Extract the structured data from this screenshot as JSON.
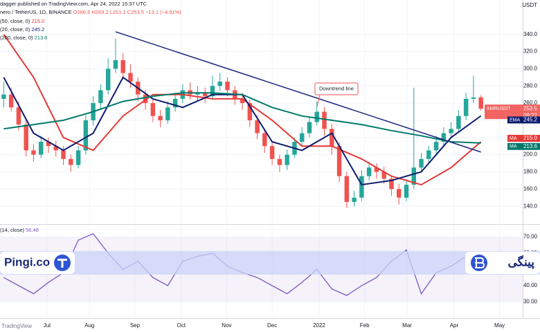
{
  "chart_data": [
    {
      "type": "candlestick",
      "published": "dagger published on TradingView.com, Apr 24, 2022 15:37 UTC",
      "symbol": "nero / TetherUS, 1D, BINANCE",
      "ohlc_header": [
        "O266.6",
        "H269.2",
        "L251.1",
        "C253.5",
        "−13.1 (−4.91%)"
      ],
      "axis_unit": "USDT",
      "up_color": "#26a69a",
      "down_color": "#ef5350",
      "open": [
        265,
        270,
        255,
        235,
        205,
        200,
        215,
        210,
        205,
        195,
        188,
        205,
        240,
        260,
        275,
        300,
        310,
        295,
        285,
        270,
        260,
        245,
        240,
        255,
        265,
        275,
        270,
        272,
        268,
        280,
        285,
        275,
        265,
        260,
        240,
        225,
        210,
        195,
        188,
        200,
        215,
        225,
        238,
        250,
        230,
        210,
        175,
        145,
        150,
        175,
        185,
        180,
        172,
        160,
        150,
        165,
        185,
        195,
        205,
        215,
        225,
        230,
        245,
        265,
        266.6
      ],
      "high": [
        285,
        278,
        262,
        240,
        212,
        222,
        220,
        216,
        210,
        200,
        210,
        246,
        268,
        282,
        312,
        335,
        318,
        305,
        290,
        276,
        266,
        252,
        262,
        272,
        282,
        284,
        280,
        278,
        292,
        295,
        290,
        280,
        272,
        264,
        246,
        230,
        214,
        200,
        206,
        220,
        232,
        244,
        262,
        255,
        236,
        214,
        180,
        158,
        182,
        192,
        190,
        186,
        176,
        166,
        172,
        278,
        202,
        210,
        222,
        232,
        238,
        252,
        272,
        292,
        269.2
      ],
      "low": [
        255,
        250,
        228,
        198,
        192,
        196,
        202,
        198,
        188,
        180,
        184,
        200,
        234,
        252,
        270,
        295,
        288,
        278,
        262,
        252,
        238,
        232,
        236,
        250,
        260,
        264,
        262,
        260,
        264,
        274,
        268,
        258,
        252,
        232,
        218,
        202,
        188,
        180,
        182,
        196,
        210,
        220,
        234,
        222,
        200,
        168,
        138,
        140,
        146,
        170,
        172,
        166,
        152,
        142,
        146,
        160,
        180,
        190,
        200,
        210,
        220,
        226,
        240,
        260,
        251.1
      ],
      "close": [
        270,
        255,
        235,
        205,
        200,
        215,
        210,
        205,
        195,
        188,
        205,
        240,
        260,
        275,
        300,
        310,
        295,
        285,
        270,
        260,
        245,
        240,
        255,
        265,
        275,
        270,
        272,
        268,
        280,
        285,
        275,
        265,
        260,
        240,
        225,
        210,
        195,
        188,
        200,
        215,
        225,
        238,
        250,
        230,
        210,
        175,
        145,
        150,
        175,
        185,
        180,
        172,
        160,
        150,
        165,
        185,
        195,
        205,
        215,
        225,
        230,
        245,
        265,
        266.6,
        253.5
      ],
      "series": [
        {
          "name": "(50, close, 0)",
          "tag": "MA",
          "color": "#e53935",
          "x": [
            0,
            4,
            8,
            12,
            16,
            20,
            24,
            28,
            32,
            36,
            40,
            44,
            48,
            52,
            56,
            60,
            64
          ],
          "values": [
            340,
            290,
            220,
            205,
            245,
            270,
            270,
            265,
            265,
            240,
            210,
            210,
            195,
            175,
            165,
            185,
            215.0
          ],
          "value_label": "215.0"
        },
        {
          "name": "(20, close, 0)",
          "tag": "EMA",
          "color": "#0d1b6e",
          "x": [
            0,
            4,
            8,
            12,
            16,
            20,
            24,
            28,
            32,
            36,
            40,
            44,
            48,
            52,
            56,
            60,
            64
          ],
          "values": [
            290,
            225,
            205,
            225,
            290,
            265,
            255,
            270,
            270,
            215,
            205,
            225,
            165,
            170,
            180,
            220,
            245.2
          ],
          "value_label": "245.2"
        },
        {
          "name": "(200, close, 0)",
          "tag": "MA",
          "color": "#00796b",
          "x": [
            0,
            4,
            8,
            12,
            16,
            20,
            24,
            28,
            32,
            36,
            40,
            44,
            48,
            52,
            56,
            60,
            64
          ],
          "values": [
            230,
            235,
            240,
            250,
            262,
            268,
            272,
            272,
            270,
            255,
            245,
            240,
            235,
            228,
            222,
            215,
            213.6
          ],
          "value_label": "213.6"
        }
      ],
      "close_tag": {
        "name": "XMRUSDT",
        "time": "08:22"
      },
      "trendline": {
        "color": "#1a237e",
        "x": [
          15,
          64
        ],
        "values": [
          343,
          203
        ]
      },
      "annotation": "Downtrend line",
      "ylim": [
        120,
        380
      ],
      "yticks": [
        {
          "value": 140,
          "label": "140.0"
        },
        {
          "value": 160,
          "label": "160.0"
        },
        {
          "value": 180,
          "label": "180.0"
        },
        {
          "value": 200,
          "label": "200.0"
        },
        {
          "value": 220,
          "label": "220.0"
        },
        {
          "value": 240,
          "label": "240.0"
        },
        {
          "value": 260,
          "label": "260.0"
        },
        {
          "value": 280,
          "label": "280.0"
        },
        {
          "value": 300,
          "label": "300.0"
        },
        {
          "value": 320,
          "label": "320.0"
        },
        {
          "value": 340,
          "label": "340.0"
        }
      ],
      "xlim": [
        -0.5,
        69.6
      ],
      "xticks": [
        {
          "value": 5.8,
          "label": "Jul"
        },
        {
          "value": 11.5,
          "label": "Aug"
        },
        {
          "value": 17.6,
          "label": "Sep"
        },
        {
          "value": 23.8,
          "label": "Oct"
        },
        {
          "value": 29.9,
          "label": "Nov"
        },
        {
          "value": 36.0,
          "label": "Dec"
        },
        {
          "value": 42.3,
          "label": "2022"
        },
        {
          "value": 48.4,
          "label": "Feb"
        },
        {
          "value": 54.1,
          "label": "Mar"
        },
        {
          "value": 60.4,
          "label": "Apr"
        },
        {
          "value": 66.5,
          "label": "May"
        }
      ],
      "grid": true
    },
    {
      "type": "line",
      "series": [
        {
          "name": "(14, close)",
          "color": "#7e57c2",
          "x": [
            0,
            2,
            4,
            6,
            8,
            10,
            12,
            14,
            16,
            18,
            20,
            22,
            24,
            26,
            28,
            30,
            32,
            34,
            36,
            38,
            40,
            42,
            44,
            46,
            48,
            50,
            52,
            54,
            56,
            58,
            60,
            62,
            64
          ],
          "values": [
            45,
            40,
            35,
            42,
            48,
            68,
            72,
            60,
            50,
            55,
            45,
            40,
            55,
            58,
            60,
            52,
            48,
            45,
            40,
            35,
            42,
            50,
            38,
            34,
            40,
            45,
            55,
            62,
            35,
            48,
            52,
            58,
            56.48
          ]
        }
      ],
      "band": [
        30,
        70
      ],
      "ylim": [
        20,
        77
      ],
      "yticks": [
        {
          "value": 30,
          "label": "30.00"
        },
        {
          "value": 40,
          "label": "40.00"
        },
        {
          "value": 50,
          "label": "50.00"
        },
        {
          "value": 60,
          "label": "60.00"
        },
        {
          "value": 70,
          "label": "70.00"
        }
      ],
      "grid": true
    }
  ],
  "banner": {
    "left": "Pingi.co",
    "right": "پینگی"
  },
  "footer": "TradingView"
}
